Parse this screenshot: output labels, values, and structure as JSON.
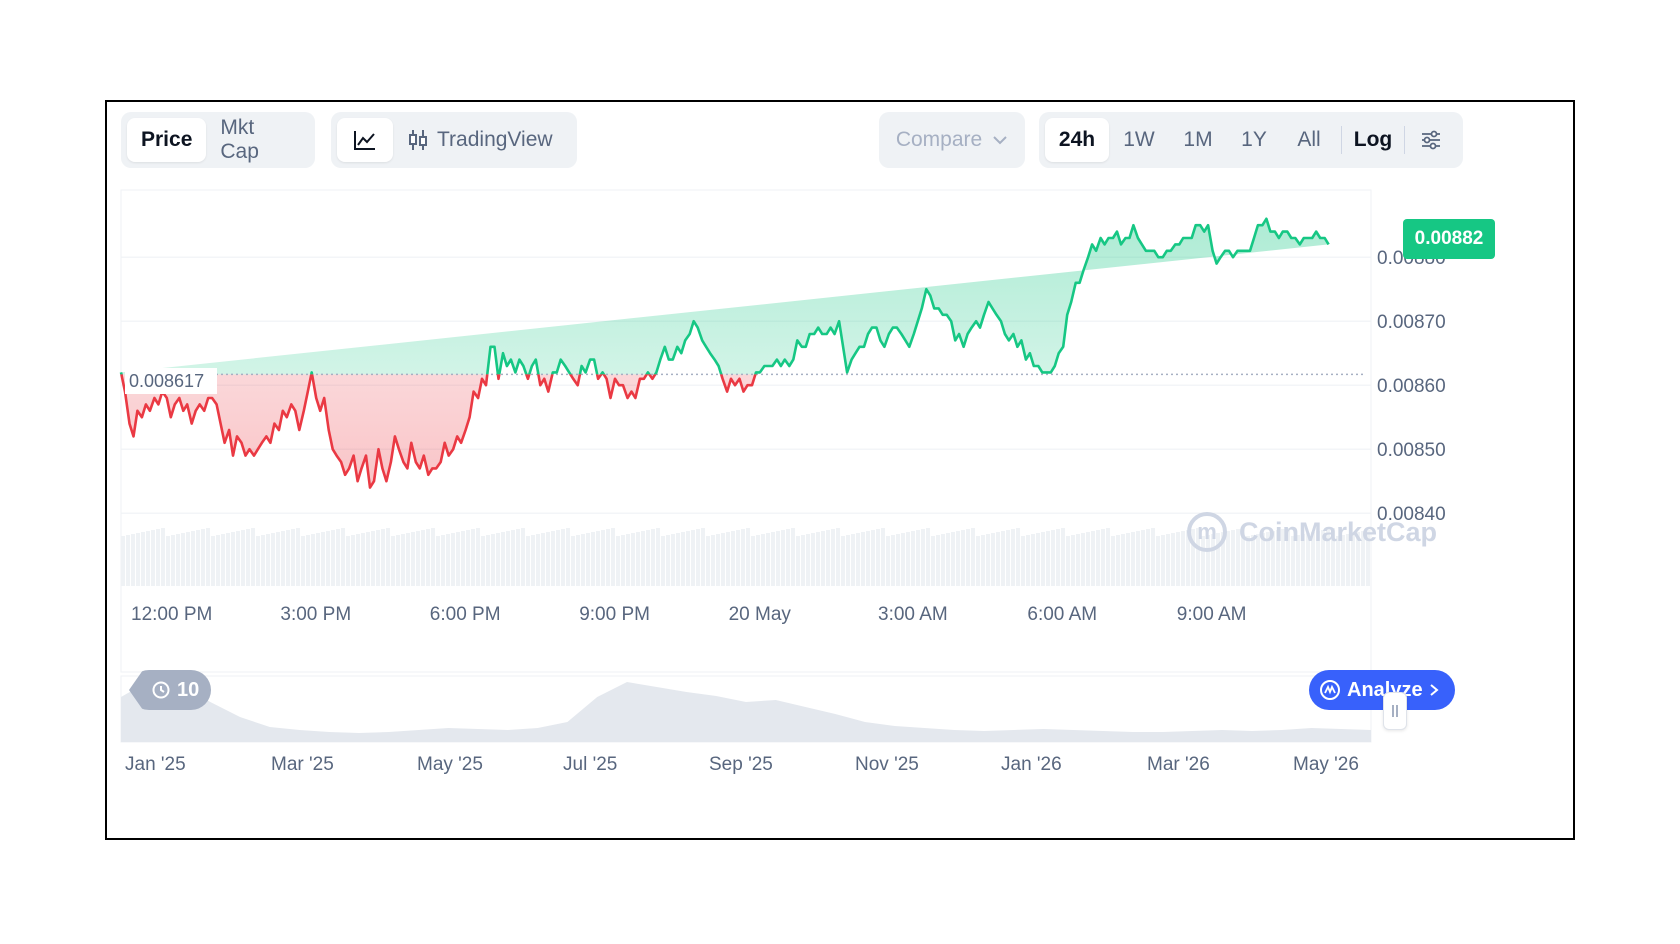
{
  "toolbar": {
    "metric_tabs": [
      {
        "label": "Price",
        "active": true
      },
      {
        "label": "Mkt Cap",
        "active": false
      }
    ],
    "chart_type_tabs": [
      {
        "icon": "line-chart-icon",
        "label": "",
        "active": true
      },
      {
        "icon": "candlestick-icon",
        "label": "TradingView",
        "active": false
      }
    ],
    "compare_label": "Compare",
    "ranges": [
      {
        "label": "24h",
        "active": true
      },
      {
        "label": "1W",
        "active": false
      },
      {
        "label": "1M",
        "active": false
      },
      {
        "label": "1Y",
        "active": false
      },
      {
        "label": "All",
        "active": false
      }
    ],
    "log_label": "Log",
    "settings_icon": "sliders-icon"
  },
  "colors": {
    "up": "#16c784",
    "down": "#ea3943",
    "up_fill": "#16c784",
    "down_fill": "#ea3943",
    "grid": "#eff2f5",
    "axis_text": "#58667e",
    "analyze": "#3861fb"
  },
  "chart_data": {
    "type": "line",
    "x_tick_labels": [
      "12:00 PM",
      "3:00 PM",
      "6:00 PM",
      "9:00 PM",
      "20 May",
      "3:00 AM",
      "6:00 AM",
      "9:00 AM"
    ],
    "x_range_hours": [
      0,
      25
    ],
    "y_ticks": [
      "0.00880",
      "0.00870",
      "0.00860",
      "0.00850",
      "0.00840"
    ],
    "ylim": [
      0.00838,
      0.008905
    ],
    "baseline": 0.008617,
    "baseline_label": "0.008617",
    "current_value_label": "0.00882",
    "x_hours": [
      0.0,
      0.08,
      0.17,
      0.25,
      0.33,
      0.42,
      0.5,
      0.58,
      0.67,
      0.75,
      0.83,
      0.92,
      1.0,
      1.08,
      1.17,
      1.25,
      1.33,
      1.42,
      1.5,
      1.58,
      1.67,
      1.75,
      1.83,
      1.92,
      2.0,
      2.08,
      2.17,
      2.25,
      2.33,
      2.42,
      2.5,
      2.58,
      2.67,
      2.75,
      2.83,
      2.92,
      3.0,
      3.08,
      3.17,
      3.25,
      3.33,
      3.42,
      3.5,
      3.58,
      3.67,
      3.75,
      3.83,
      3.92,
      4.0,
      4.08,
      4.17,
      4.25,
      4.33,
      4.42,
      4.5,
      4.58,
      4.67,
      4.75,
      4.83,
      4.92,
      5.0,
      5.08,
      5.17,
      5.25,
      5.33,
      5.42,
      5.5,
      5.58,
      5.67,
      5.75,
      5.83,
      5.92,
      6.0,
      6.08,
      6.17,
      6.25,
      6.33,
      6.42,
      6.5,
      6.58,
      6.67,
      6.75,
      6.83,
      6.92,
      7.0,
      7.08,
      7.17,
      7.25,
      7.33,
      7.42,
      7.5,
      7.58,
      7.67,
      7.75,
      7.83,
      7.92,
      8.0,
      8.08,
      8.17,
      8.25,
      8.33,
      8.42,
      8.5,
      8.58,
      8.67,
      8.75,
      8.83,
      8.92,
      9.0,
      9.08,
      9.17,
      9.25,
      9.33,
      9.42,
      9.5,
      9.58,
      9.67,
      9.75,
      9.83,
      9.92,
      10.0,
      10.08,
      10.17,
      10.25,
      10.33,
      10.42,
      10.5,
      10.58,
      10.67,
      10.75,
      10.83,
      10.92,
      11.0,
      11.08,
      11.17,
      11.25,
      11.33,
      11.42,
      11.5,
      11.58,
      11.67,
      11.75,
      11.83,
      11.92,
      12.0,
      12.08,
      12.17,
      12.25,
      12.33,
      12.42,
      12.5,
      12.58,
      12.67,
      12.75,
      12.83,
      12.92,
      13.0,
      13.08,
      13.17,
      13.25,
      13.33,
      13.42,
      13.5,
      13.58,
      13.67,
      13.75,
      13.83,
      13.92,
      14.0,
      14.08,
      14.17,
      14.25,
      14.33,
      14.42,
      14.5,
      14.58,
      14.67,
      14.75,
      14.83,
      14.92,
      15.0,
      15.08,
      15.17,
      15.25,
      15.33,
      15.42,
      15.5,
      15.58,
      15.67,
      15.75,
      15.83,
      15.92,
      16.0,
      16.08,
      16.17,
      16.25,
      16.33,
      16.42,
      16.5,
      16.58,
      16.67,
      16.75,
      16.83,
      16.92,
      17.0,
      17.08,
      17.17,
      17.25,
      17.33,
      17.42,
      17.5,
      17.58,
      17.67,
      17.75,
      17.83,
      17.92,
      18.0,
      18.08,
      18.17,
      18.25,
      18.33,
      18.42,
      18.5,
      18.58,
      18.67,
      18.75,
      18.83,
      18.92,
      19.0,
      19.08,
      19.17,
      19.25,
      19.33,
      19.42,
      19.5,
      19.58,
      19.67,
      19.75,
      19.83,
      19.92,
      20.0,
      20.08,
      20.17,
      20.25,
      20.33,
      20.42,
      20.5,
      20.58,
      20.67,
      20.75,
      20.83,
      20.92,
      21.0,
      21.08,
      21.17,
      21.25,
      21.33,
      21.42,
      21.5,
      21.58,
      21.67,
      21.75,
      21.83,
      21.92,
      22.0,
      22.08,
      22.17,
      22.25,
      22.33,
      22.42,
      22.5,
      22.58,
      22.67,
      22.75,
      22.83,
      22.92,
      23.0,
      23.08,
      23.17,
      23.25,
      23.33,
      23.42,
      23.5,
      23.58,
      23.67,
      23.75,
      23.83,
      23.92,
      24.0,
      24.08,
      24.17,
      24.25,
      24.33,
      24.42,
      24.5,
      24.58,
      24.67,
      24.75,
      24.83,
      24.92,
      25.0
    ],
    "prices": [
      0.00862,
      0.00859,
      0.00854,
      0.00852,
      0.00856,
      0.00855,
      0.00857,
      0.00856,
      0.00858,
      0.00857,
      0.00859,
      0.00858,
      0.00855,
      0.00857,
      0.00858,
      0.00856,
      0.00857,
      0.00854,
      0.00856,
      0.00857,
      0.00856,
      0.00858,
      0.00858,
      0.00857,
      0.00854,
      0.00851,
      0.00853,
      0.00849,
      0.00852,
      0.00851,
      0.00849,
      0.0085,
      0.00849,
      0.0085,
      0.00851,
      0.00852,
      0.00851,
      0.00854,
      0.00853,
      0.00856,
      0.00855,
      0.00857,
      0.00856,
      0.00853,
      0.00856,
      0.00859,
      0.00862,
      0.00858,
      0.00856,
      0.00858,
      0.00853,
      0.0085,
      0.00849,
      0.00848,
      0.00846,
      0.00847,
      0.00849,
      0.00845,
      0.00847,
      0.00849,
      0.00844,
      0.00845,
      0.0085,
      0.00847,
      0.00845,
      0.00848,
      0.00852,
      0.0085,
      0.00848,
      0.00847,
      0.00851,
      0.00848,
      0.00847,
      0.00849,
      0.00846,
      0.00847,
      0.00847,
      0.00848,
      0.00851,
      0.00849,
      0.0085,
      0.00852,
      0.00851,
      0.00853,
      0.00855,
      0.00859,
      0.00858,
      0.00861,
      0.0086,
      0.00866,
      0.00866,
      0.00861,
      0.00865,
      0.00863,
      0.00864,
      0.00862,
      0.00864,
      0.00863,
      0.00861,
      0.00863,
      0.00864,
      0.0086,
      0.00861,
      0.00859,
      0.00862,
      0.00862,
      0.00864,
      0.00863,
      0.00862,
      0.00861,
      0.0086,
      0.00863,
      0.00862,
      0.00864,
      0.00864,
      0.00861,
      0.00862,
      0.00861,
      0.00858,
      0.00861,
      0.0086,
      0.0086,
      0.00858,
      0.00859,
      0.00858,
      0.00861,
      0.00861,
      0.00862,
      0.00861,
      0.00862,
      0.00864,
      0.00866,
      0.00864,
      0.00864,
      0.00866,
      0.00865,
      0.00867,
      0.00868,
      0.0087,
      0.00869,
      0.00867,
      0.00866,
      0.00865,
      0.00864,
      0.00863,
      0.00861,
      0.00859,
      0.00861,
      0.0086,
      0.00861,
      0.00859,
      0.0086,
      0.0086,
      0.00862,
      0.00862,
      0.00863,
      0.00863,
      0.00863,
      0.00864,
      0.00863,
      0.00864,
      0.00863,
      0.00864,
      0.00867,
      0.00866,
      0.00866,
      0.00868,
      0.00868,
      0.00869,
      0.00868,
      0.00868,
      0.00869,
      0.00868,
      0.0087,
      0.00866,
      0.00862,
      0.00864,
      0.00865,
      0.00866,
      0.00866,
      0.00868,
      0.00869,
      0.00869,
      0.00867,
      0.00866,
      0.00868,
      0.00869,
      0.00869,
      0.00868,
      0.00867,
      0.00866,
      0.00868,
      0.0087,
      0.00872,
      0.00875,
      0.00874,
      0.00872,
      0.00872,
      0.00871,
      0.00871,
      0.0087,
      0.00867,
      0.00868,
      0.00866,
      0.00868,
      0.00869,
      0.0087,
      0.00869,
      0.00871,
      0.00873,
      0.00872,
      0.00871,
      0.0087,
      0.00868,
      0.00867,
      0.00868,
      0.00866,
      0.00867,
      0.00864,
      0.00865,
      0.00863,
      0.00863,
      0.00862,
      0.00862,
      0.00862,
      0.00863,
      0.00865,
      0.00866,
      0.00871,
      0.00873,
      0.00876,
      0.00876,
      0.00878,
      0.0088,
      0.00882,
      0.00881,
      0.00883,
      0.00882,
      0.00883,
      0.00883,
      0.00884,
      0.00882,
      0.00883,
      0.00883,
      0.00885,
      0.00883,
      0.00882,
      0.00881,
      0.00881,
      0.00881,
      0.0088,
      0.0088,
      0.00881,
      0.00881,
      0.00882,
      0.00882,
      0.00883,
      0.00883,
      0.00883,
      0.00885,
      0.00885,
      0.00884,
      0.00885,
      0.00881,
      0.00879,
      0.0088,
      0.00881,
      0.00881,
      0.0088,
      0.00881,
      0.00881,
      0.00881,
      0.00881,
      0.00883,
      0.00885,
      0.00885,
      0.00886,
      0.00884,
      0.00884,
      0.00883,
      0.00884,
      0.00884,
      0.00883,
      0.00883,
      0.00882,
      0.00883,
      0.00883,
      0.00883,
      0.00884,
      0.00883,
      0.00883,
      0.00882
    ]
  },
  "overview": {
    "x_tick_labels": [
      "Jan '25",
      "Mar '25",
      "May '25",
      "Jul '25",
      "Sep '25",
      "Nov '25",
      "Jan '26",
      "Mar '26",
      "May '26"
    ],
    "history_count": "10",
    "history_icon": "history-icon"
  },
  "watermark": {
    "text": "CoinMarketCap",
    "icon": "coinmarketcap-logo"
  },
  "analyze_label": "Analyze"
}
